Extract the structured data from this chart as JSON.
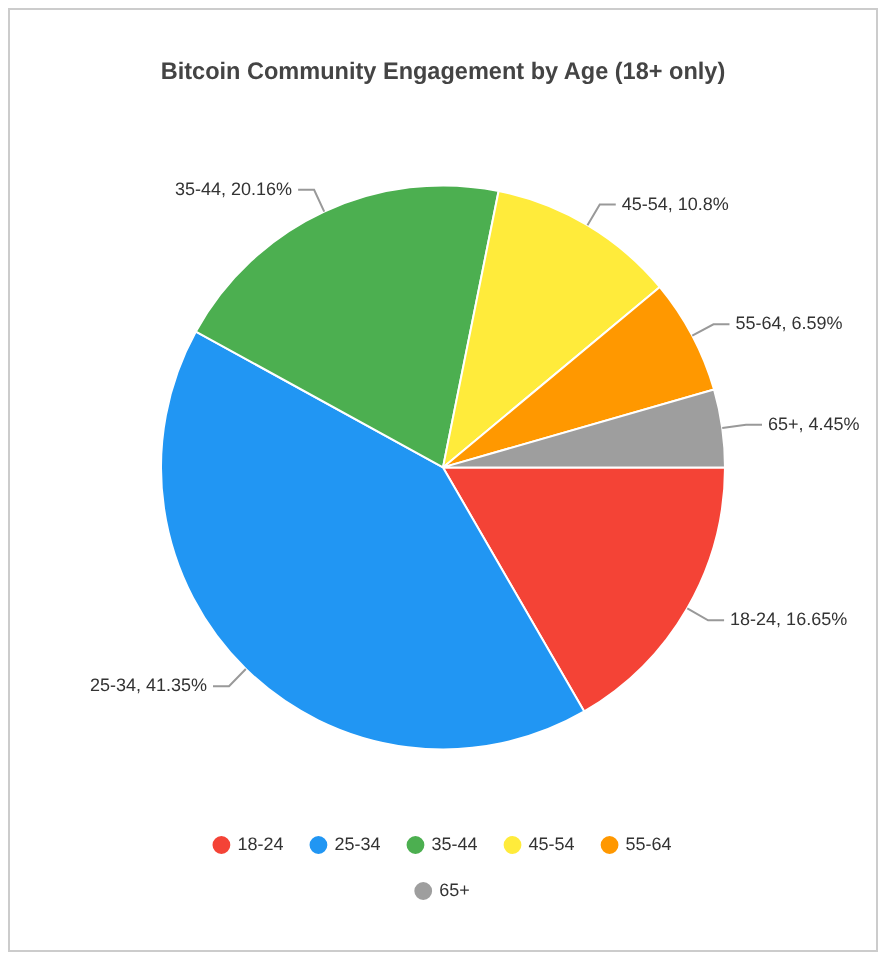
{
  "chart_data": {
    "type": "pie",
    "title": "Bitcoin Community Engagement by Age (18+ only)",
    "categories": [
      "18-24",
      "25-34",
      "35-44",
      "45-54",
      "55-64",
      "65+"
    ],
    "values": [
      16.65,
      41.35,
      20.16,
      10.8,
      6.59,
      4.45
    ],
    "colors": [
      "#f44336",
      "#2196f3",
      "#4caf50",
      "#ffeb3b",
      "#ff9800",
      "#9e9e9e"
    ],
    "value_labels": [
      "18-24, 16.65%",
      "25-34, 41.35%",
      "35-44, 20.16%",
      "45-54, 10.8%",
      "55-64, 6.59%",
      "65+, 4.45%"
    ],
    "legend": "bottom"
  }
}
